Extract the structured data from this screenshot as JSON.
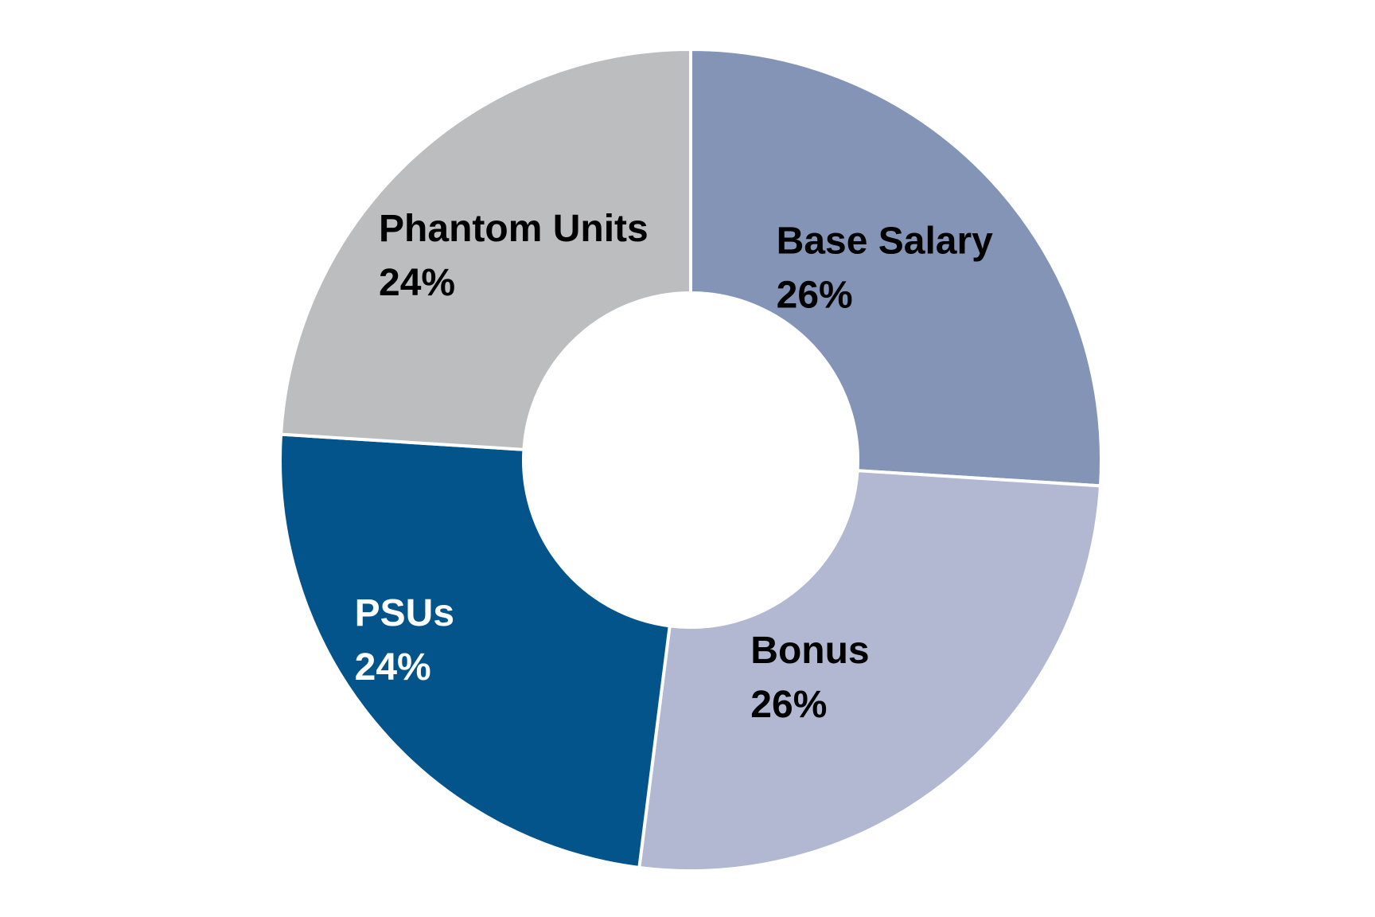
{
  "chart_data": {
    "type": "donut",
    "categories": [
      "Base Salary",
      "Bonus",
      "PSUs",
      "Phantom Units"
    ],
    "values": [
      26,
      26,
      24,
      24
    ],
    "value_labels": [
      "26%",
      "26%",
      "24%",
      "24%"
    ],
    "colors": [
      "#8494b6",
      "#b2b8d2",
      "#03548b",
      "#bcbdbf"
    ],
    "label_colors": [
      "#000000",
      "#000000",
      "#ffffff",
      "#000000"
    ]
  }
}
